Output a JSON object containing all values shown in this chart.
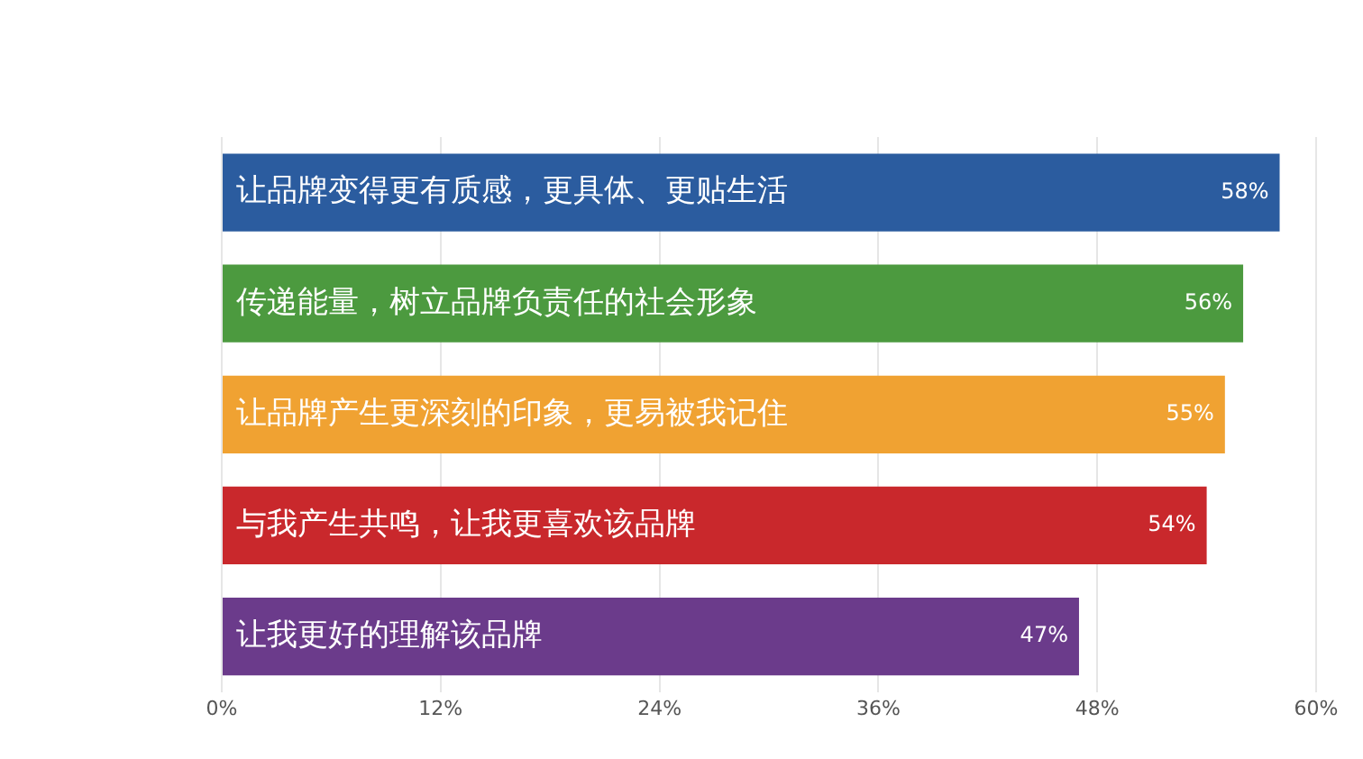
{
  "chart_data": {
    "type": "bar",
    "orientation": "horizontal",
    "categories": [
      "让品牌变得更有质感，更具体、更贴生活",
      "传递能量，树立品牌负责任的社会形象",
      "让品牌产生更深刻的印象，更易被我记住",
      "与我产生共鸣，让我更喜欢该品牌",
      "让我更好的理解该品牌"
    ],
    "values": [
      58,
      56,
      55,
      54,
      47
    ],
    "colors": [
      "#2b5c9f",
      "#4c9a3f",
      "#f0a232",
      "#c9282c",
      "#6b3b8b"
    ],
    "value_labels": [
      "58%",
      "56%",
      "55%",
      "54%",
      "47%"
    ],
    "xlim": [
      0,
      60
    ],
    "xticks": [
      {
        "value": 0,
        "label": "0%"
      },
      {
        "value": 12,
        "label": "12%"
      },
      {
        "value": 24,
        "label": "24%"
      },
      {
        "value": 36,
        "label": "36%"
      },
      {
        "value": 48,
        "label": "48%"
      },
      {
        "value": 60,
        "label": "60%"
      }
    ],
    "grid": "x",
    "legend": false
  }
}
